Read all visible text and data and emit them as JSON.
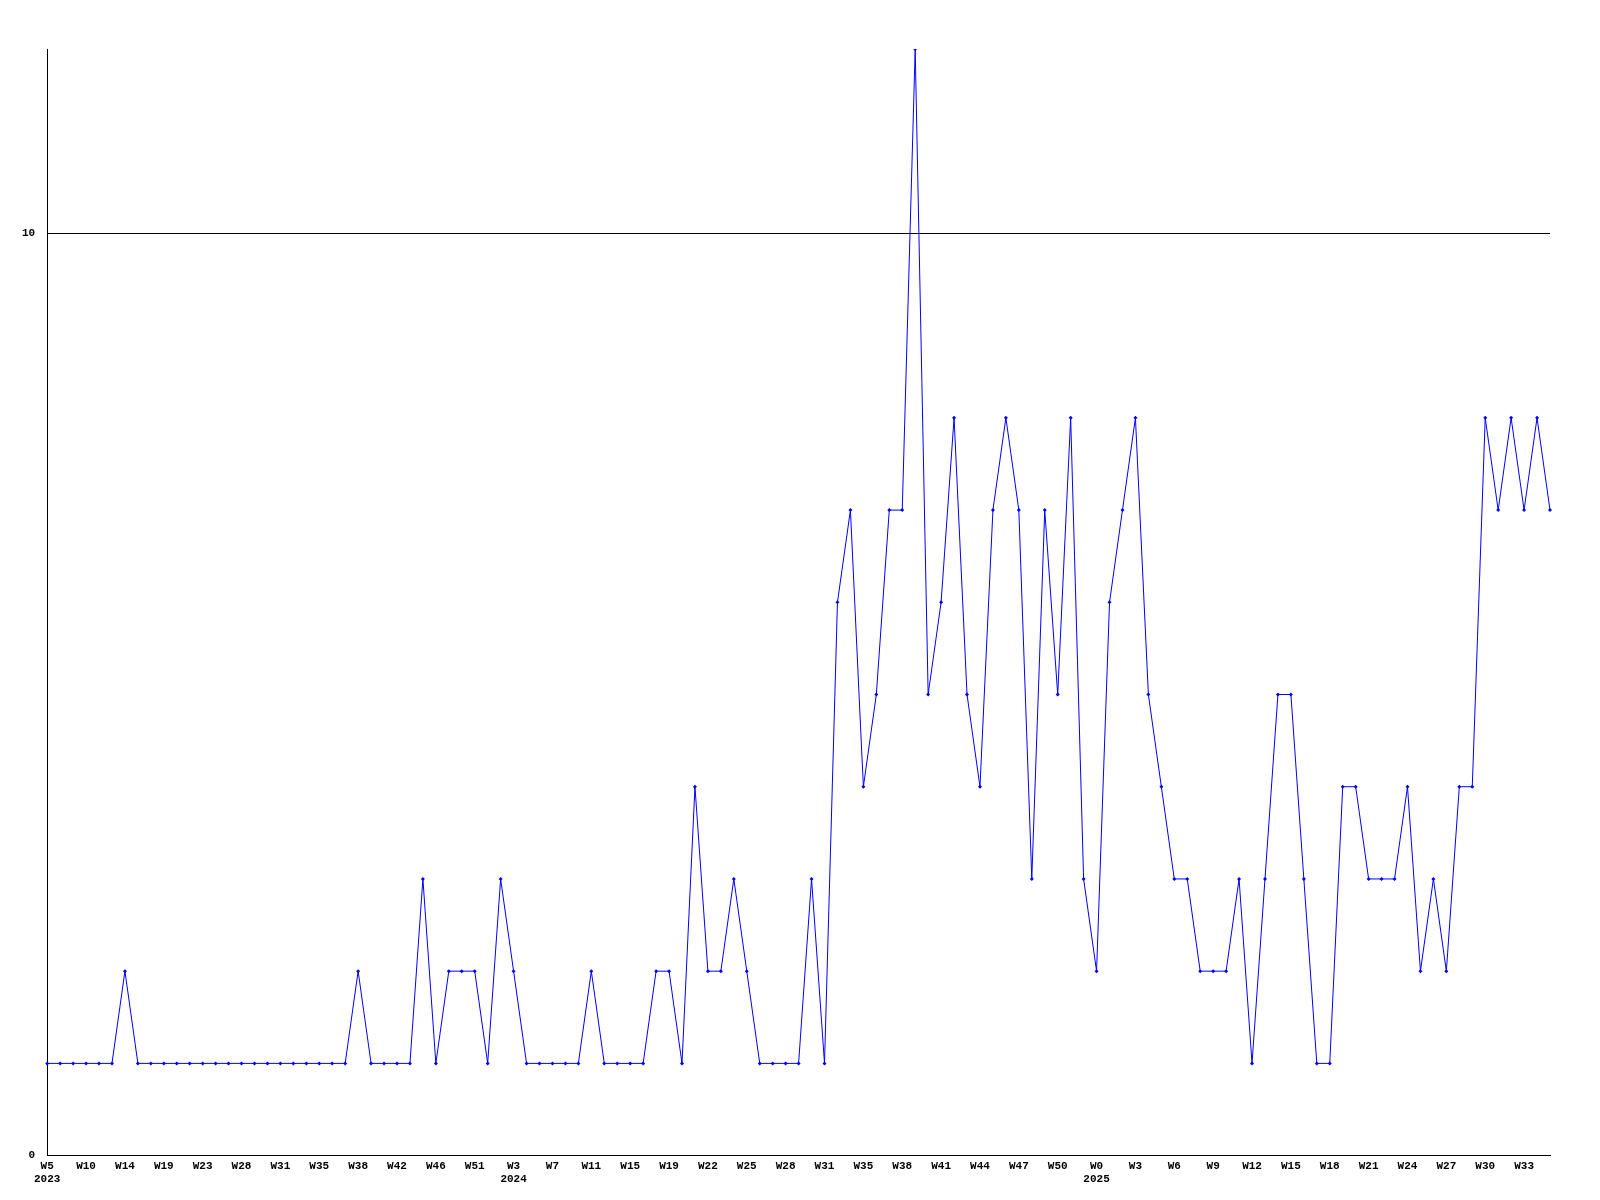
{
  "chart_data": {
    "type": "line",
    "categories": [
      "W5\n2023",
      null,
      null,
      "W10",
      null,
      null,
      "W14",
      null,
      null,
      "W19",
      null,
      null,
      "W23",
      null,
      null,
      "W28",
      null,
      null,
      "W31",
      null,
      null,
      "W35",
      null,
      null,
      "W38",
      null,
      null,
      "W42",
      null,
      null,
      "W46",
      null,
      null,
      "W51",
      null,
      null,
      "W3\n2024",
      null,
      null,
      "W7",
      null,
      null,
      "W11",
      null,
      null,
      "W15",
      null,
      null,
      "W19",
      null,
      null,
      "W22",
      null,
      null,
      "W25",
      null,
      null,
      "W28",
      null,
      null,
      "W31",
      null,
      null,
      "W35",
      null,
      null,
      "W38",
      null,
      null,
      "W41",
      null,
      null,
      "W44",
      null,
      null,
      "W47",
      null,
      null,
      "W50",
      null,
      null,
      "W0\n2025",
      null,
      null,
      "W3",
      null,
      null,
      "W6",
      null,
      null,
      "W9",
      null,
      null,
      "W12",
      null,
      null,
      "W15",
      null,
      null,
      "W18",
      null,
      null,
      "W21",
      null,
      null,
      "W24",
      null,
      null,
      "W27",
      null,
      null,
      "W30",
      null,
      null,
      "W33",
      null,
      null
    ],
    "series": [
      {
        "color": "#0000ff",
        "values": [
          1,
          1,
          1,
          1,
          1,
          1,
          2,
          1,
          1,
          1,
          1,
          1,
          1,
          1,
          1,
          1,
          1,
          1,
          1,
          1,
          1,
          1,
          1,
          1,
          2,
          1,
          1,
          1,
          1,
          3,
          1,
          2,
          2,
          2,
          1,
          3,
          2,
          1,
          1,
          1,
          1,
          1,
          2,
          1,
          1,
          1,
          1,
          2,
          2,
          1,
          4,
          2,
          2,
          3,
          2,
          1,
          1,
          1,
          1,
          3,
          1,
          6,
          7,
          4,
          5,
          7,
          7,
          12,
          5,
          6,
          8,
          5,
          4,
          7,
          8,
          7,
          3,
          7,
          5,
          8,
          3,
          2,
          6,
          7,
          8,
          5,
          4,
          3,
          3,
          2,
          2,
          2,
          3,
          1,
          3,
          5,
          5,
          3,
          1,
          1,
          4,
          4,
          3,
          3,
          3,
          4,
          2,
          3,
          2,
          4,
          4,
          8,
          7,
          8,
          7,
          8,
          7
        ]
      }
    ],
    "ylim": [
      0,
      12
    ],
    "yticks": [
      0,
      10
    ],
    "grid": "y",
    "marker": "diamond",
    "line_style": "solid"
  }
}
